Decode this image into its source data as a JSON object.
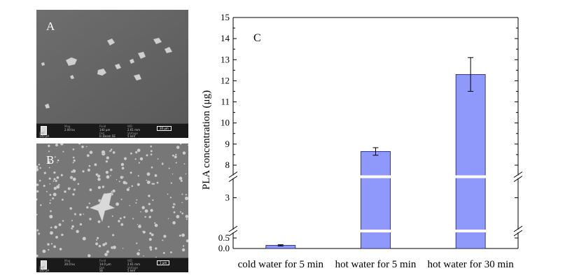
{
  "sem_panels": [
    {
      "label": "A",
      "fields": [
        {
          "header": "Mag",
          "value": "2.00 kx"
        },
        {
          "header": "Field",
          "value": "140 µm"
        },
        {
          "header": "WD",
          "value": "2.61 mm"
        },
        {
          "header": "EHT",
          "value": "100 pA"
        },
        {
          "header": "Det",
          "value": "In Beam SE"
        },
        {
          "header": "Voltage",
          "value": "5 keV"
        }
      ],
      "scale_bar": "20 µm"
    },
    {
      "label": "B",
      "fields": [
        {
          "header": "Mag",
          "value": "20.0 kx"
        },
        {
          "header": "Field",
          "value": "14.0 µm"
        },
        {
          "header": "WD",
          "value": "2.61 mm"
        },
        {
          "header": "EHT",
          "value": "100 pA"
        },
        {
          "header": "Det",
          "value": "SE"
        },
        {
          "header": "Voltage",
          "value": "5 keV"
        }
      ],
      "scale_bar": "1 µm"
    }
  ],
  "chart_data": {
    "type": "bar",
    "panel_label": "C",
    "title": "",
    "xlabel": "",
    "ylabel": "PLA concentration (μg)",
    "categories": [
      "cold water for 5 min",
      "hot water for 5 min",
      "hot water for 30 min"
    ],
    "values": [
      0.15,
      8.65,
      12.3
    ],
    "errors": [
      0.03,
      0.18,
      0.8
    ],
    "bar_color": "#8f98fb",
    "axis_breaks": [
      [
        0.5,
        2.5
      ],
      [
        3.3,
        7.7
      ]
    ],
    "ylim": [
      0,
      15
    ],
    "yticks_bottom": [
      "0.0",
      "0.5"
    ],
    "yticks_middle": [
      "3"
    ],
    "yticks_top": [
      "8",
      "9",
      "10",
      "11",
      "12",
      "13",
      "14",
      "15"
    ],
    "grid": false,
    "legend": "none"
  }
}
